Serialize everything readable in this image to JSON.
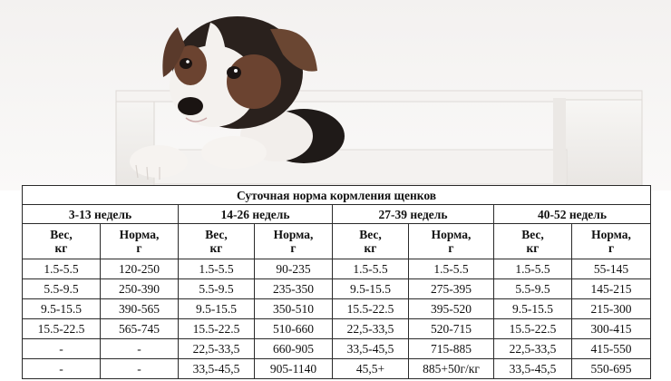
{
  "table": {
    "title": "Суточная норма кормления щенков",
    "periods": [
      "3-13 недель",
      "14-26 недель",
      "27-39 недель",
      "40-52 недель"
    ],
    "subheaders": [
      {
        "weight_line1": "Вес,",
        "weight_line2": "кг",
        "norm_line1": "Норма,",
        "norm_line2": "г"
      },
      {
        "weight_line1": "Вес,",
        "weight_line2": "кг",
        "norm_line1": "Норма,",
        "norm_line2": "г"
      },
      {
        "weight_line1": "Вес,",
        "weight_line2": "кг",
        "norm_line1": "Норма,",
        "norm_line2": "г"
      },
      {
        "weight_line1": "Вес,",
        "weight_line2": "кг",
        "norm_line1": "Норма,",
        "norm_line2": "г"
      }
    ],
    "rows": [
      [
        "1.5-5.5",
        "120-250",
        "1.5-5.5",
        "90-235",
        "1.5-5.5",
        "1.5-5.5",
        "1.5-5.5",
        "55-145"
      ],
      [
        "5.5-9.5",
        "250-390",
        "5.5-9.5",
        "235-350",
        "9.5-15.5",
        "275-395",
        "5.5-9.5",
        "145-215"
      ],
      [
        "9.5-15.5",
        "390-565",
        "9.5-15.5",
        "350-510",
        "15.5-22.5",
        "395-520",
        "9.5-15.5",
        "215-300"
      ],
      [
        "15.5-22.5",
        "565-745",
        "15.5-22.5",
        "510-660",
        "22,5-33,5",
        "520-715",
        "15.5-22.5",
        "300-415"
      ],
      [
        "-",
        "-",
        "22,5-33,5",
        "660-905",
        "33,5-45,5",
        "715-885",
        "22,5-33,5",
        "415-550"
      ],
      [
        "-",
        "-",
        "33,5-45,5",
        "905-1140",
        "45,5+",
        "885+50г/кг",
        "33,5-45,5",
        "550-695"
      ]
    ]
  },
  "colors": {
    "background": "#ffffff",
    "border": "#2a2a2a",
    "text": "#111111"
  }
}
